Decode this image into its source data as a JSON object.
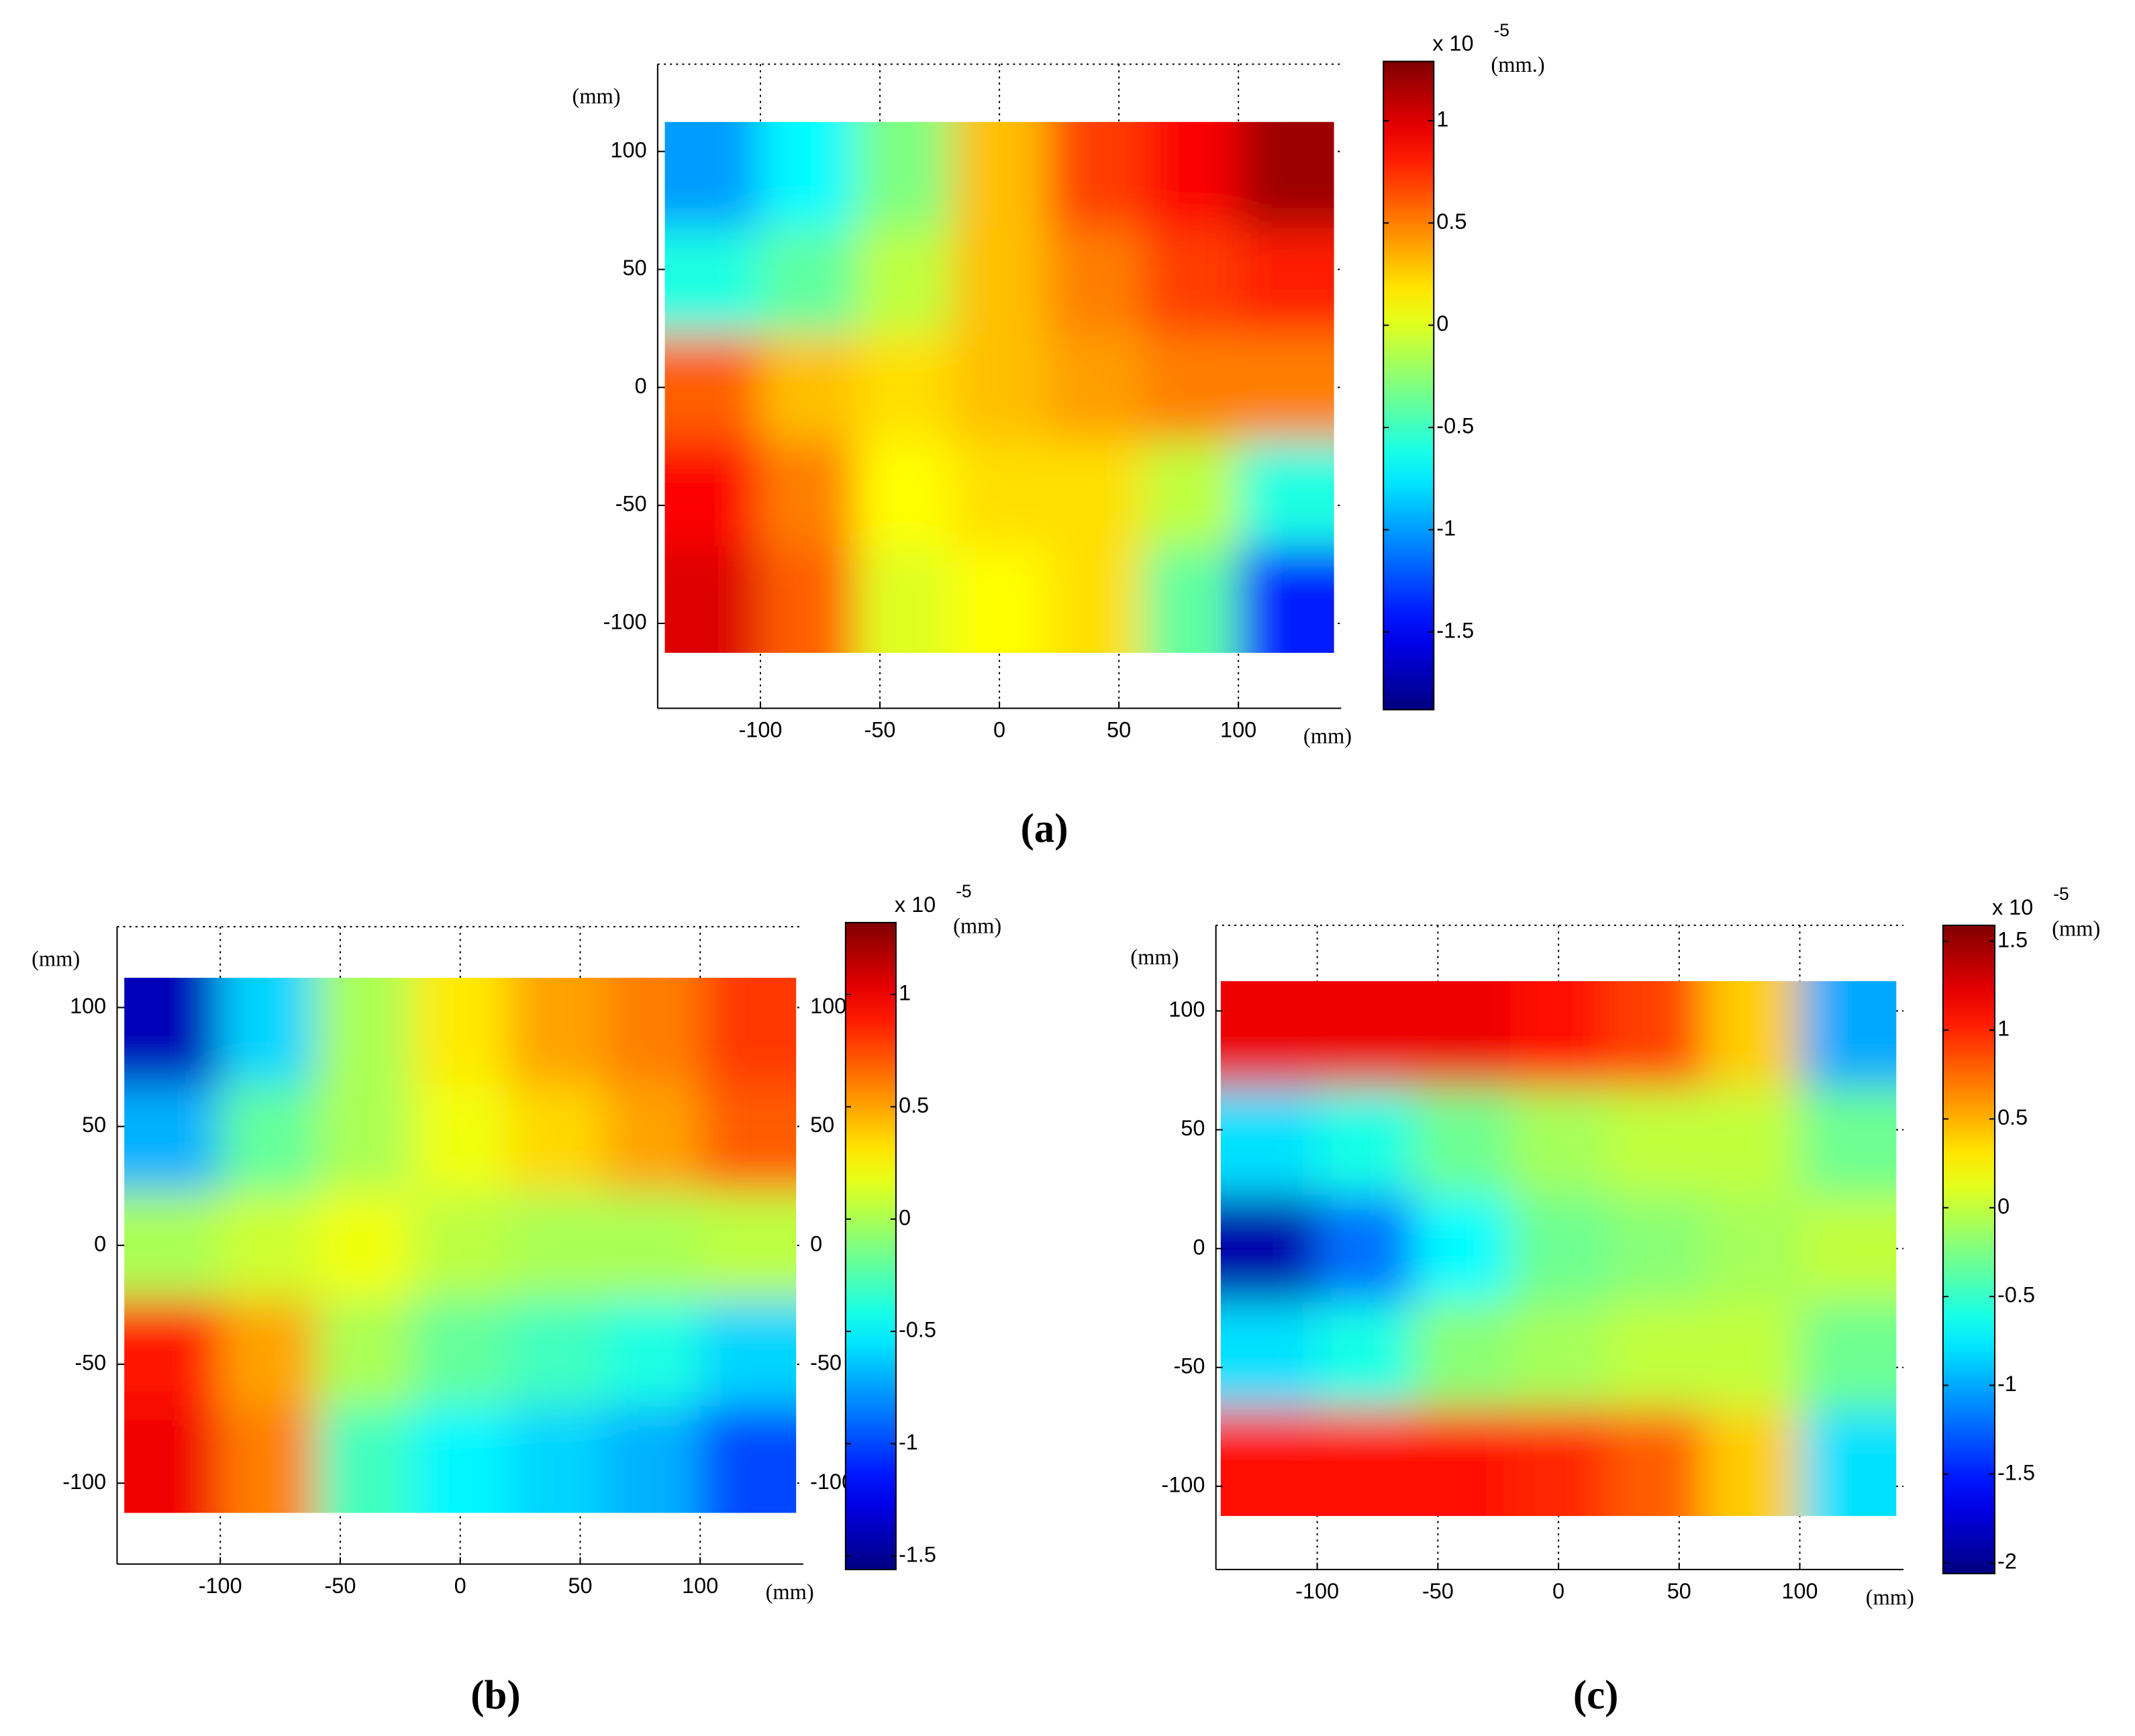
{
  "chart_data": [
    {
      "type": "heatmap",
      "panel_label": "(a)",
      "xlabel": "(mm)",
      "ylabel": "(mm)",
      "colorbar_multiplier": "x 10",
      "colorbar_exponent": "-5",
      "colorbar_label": "(mm.)",
      "colormap": "jet",
      "grid": true,
      "xlim": [
        -143,
        143
      ],
      "ylim": [
        -136,
        137
      ],
      "xticks": [
        -100,
        -50,
        0,
        50,
        100
      ],
      "yticks": [
        -100,
        -50,
        0,
        50,
        100
      ],
      "clim": [
        -1.88,
        1.29
      ],
      "cticks": [
        -1.5,
        -1,
        -0.5,
        0,
        0.5,
        1
      ],
      "x": [
        -120,
        -80,
        -40,
        0,
        40,
        80,
        120
      ],
      "y": [
        90,
        45,
        0,
        -45,
        -90
      ],
      "z": [
        [
          -1.0,
          -0.7,
          -0.3,
          0.3,
          0.7,
          0.9,
          1.2
        ],
        [
          -0.6,
          -0.4,
          -0.1,
          0.3,
          0.5,
          0.7,
          0.8
        ],
        [
          0.6,
          0.3,
          0.2,
          0.3,
          0.4,
          0.5,
          0.5
        ],
        [
          0.9,
          0.5,
          0.1,
          0.2,
          0.2,
          -0.1,
          -0.6
        ],
        [
          1.0,
          0.6,
          0.0,
          0.1,
          0.2,
          -0.4,
          -1.4
        ]
      ]
    },
    {
      "type": "heatmap",
      "panel_label": "(b)",
      "xlabel": "(mm)",
      "ylabel": "(mm)",
      "colorbar_multiplier": "x 10",
      "colorbar_exponent": "-5",
      "colorbar_label": "(mm)",
      "colormap": "jet",
      "grid": true,
      "y_labels_both_sides": true,
      "xlim": [
        -143,
        143
      ],
      "ylim": [
        -134,
        134
      ],
      "xticks": [
        -100,
        -50,
        0,
        50,
        100
      ],
      "yticks": [
        -100,
        -50,
        0,
        50,
        100
      ],
      "clim": [
        -1.56,
        1.32
      ],
      "cticks": [
        -1.5,
        -1,
        -0.5,
        0,
        0.5,
        1
      ],
      "x": [
        -120,
        -80,
        -40,
        0,
        40,
        80,
        120
      ],
      "y": [
        90,
        45,
        0,
        -45,
        -90
      ],
      "z": [
        [
          -1.4,
          -0.6,
          0.0,
          0.3,
          0.5,
          0.6,
          0.8
        ],
        [
          -0.7,
          -0.2,
          0.0,
          0.2,
          0.35,
          0.5,
          0.7
        ],
        [
          0.0,
          0.1,
          0.2,
          0.05,
          0.0,
          0.0,
          0.05
        ],
        [
          0.9,
          0.5,
          0.0,
          -0.2,
          -0.3,
          -0.4,
          -0.6
        ],
        [
          1.0,
          0.6,
          -0.3,
          -0.5,
          -0.6,
          -0.7,
          -1.0
        ]
      ]
    },
    {
      "type": "heatmap",
      "panel_label": "(c)",
      "xlabel": "(mm)",
      "ylabel": "(mm)",
      "colorbar_multiplier": "x 10",
      "colorbar_exponent": "-5",
      "colorbar_label": "(mm)",
      "colormap": "jet",
      "grid": true,
      "xlim": [
        -142,
        143
      ],
      "ylim": [
        -135,
        136
      ],
      "xticks": [
        -100,
        -50,
        0,
        50,
        100
      ],
      "yticks": [
        -100,
        -50,
        0,
        50,
        100
      ],
      "clim": [
        -2.06,
        1.59
      ],
      "cticks": [
        -2,
        -1.5,
        -1,
        -0.5,
        0,
        0.5,
        1,
        1.5
      ],
      "x": [
        -120,
        -80,
        -40,
        0,
        40,
        80,
        120
      ],
      "y": [
        90,
        45,
        0,
        -45,
        -90
      ],
      "z": [
        [
          1.2,
          1.2,
          1.2,
          1.1,
          0.9,
          0.4,
          -1.0
        ],
        [
          -0.8,
          -0.6,
          -0.3,
          -0.1,
          0.0,
          0.0,
          -0.3
        ],
        [
          -1.9,
          -1.2,
          -0.7,
          -0.3,
          -0.2,
          -0.1,
          0.0
        ],
        [
          -0.8,
          -0.6,
          -0.2,
          -0.1,
          0.0,
          0.0,
          -0.3
        ],
        [
          1.1,
          1.1,
          1.1,
          1.0,
          0.8,
          0.4,
          -0.8
        ]
      ]
    }
  ]
}
